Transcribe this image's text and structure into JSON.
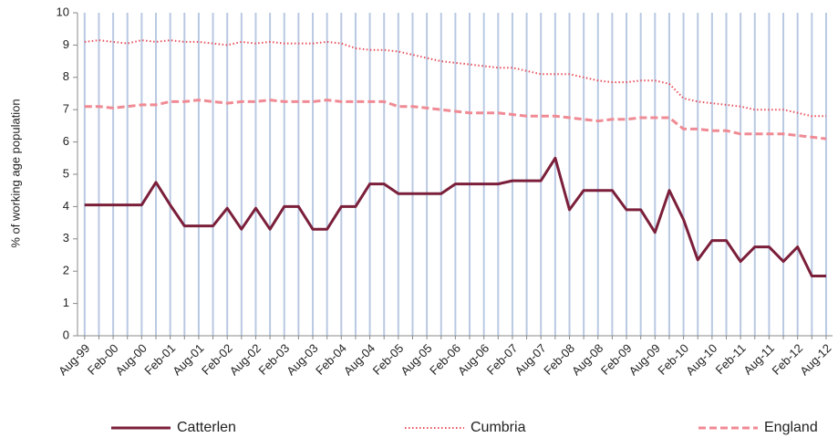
{
  "chart_data": {
    "type": "line",
    "y_label": "% of working age population",
    "categories": [
      "Aug-99",
      null,
      "Feb-00",
      null,
      "Aug-00",
      null,
      "Feb-01",
      null,
      "Aug-01",
      null,
      "Feb-02",
      null,
      "Aug-02",
      null,
      "Feb-03",
      null,
      "Aug-03",
      null,
      "Feb-04",
      null,
      "Aug-04",
      null,
      "Feb-05",
      null,
      "Aug-05",
      null,
      "Feb-06",
      null,
      "Aug-06",
      null,
      "Feb-07",
      null,
      "Aug-07",
      null,
      "Feb-08",
      null,
      "Aug-08",
      null,
      "Feb-09",
      null,
      "Aug-09",
      null,
      "Feb-10",
      null,
      "Aug-10",
      null,
      "Feb-11",
      null,
      "Aug-11",
      null,
      "Feb-12",
      null,
      "Aug-12"
    ],
    "series": [
      {
        "name": "Catterlen",
        "color": "#7b1f3a",
        "style": "solid",
        "values": [
          4.05,
          4.05,
          4.05,
          4.05,
          4.05,
          4.75,
          4.05,
          3.4,
          3.4,
          3.4,
          3.95,
          3.3,
          3.95,
          3.3,
          4.0,
          4.0,
          3.3,
          3.3,
          4.0,
          4.0,
          4.7,
          4.7,
          4.4,
          4.4,
          4.4,
          4.4,
          4.7,
          4.7,
          4.7,
          4.7,
          4.8,
          4.8,
          4.8,
          5.5,
          3.9,
          4.5,
          4.5,
          4.5,
          3.9,
          3.9,
          3.2,
          4.5,
          3.6,
          2.35,
          2.95,
          2.95,
          2.3,
          2.75,
          2.75,
          2.3,
          2.75,
          1.85,
          1.85
        ]
      },
      {
        "name": "Cumbria",
        "color": "#e8505b",
        "style": "dotted",
        "values": [
          9.1,
          9.15,
          9.1,
          9.05,
          9.15,
          9.1,
          9.15,
          9.1,
          9.1,
          9.05,
          9.0,
          9.1,
          9.05,
          9.1,
          9.05,
          9.05,
          9.05,
          9.1,
          9.05,
          8.9,
          8.85,
          8.85,
          8.8,
          8.7,
          8.6,
          8.5,
          8.45,
          8.4,
          8.35,
          8.3,
          8.3,
          8.2,
          8.1,
          8.1,
          8.1,
          8.0,
          7.9,
          7.85,
          7.85,
          7.9,
          7.9,
          7.8,
          7.35,
          7.25,
          7.2,
          7.15,
          7.1,
          7.0,
          7.0,
          7.0,
          6.9,
          6.8,
          6.8
        ]
      },
      {
        "name": "England",
        "color": "#f08a94",
        "style": "dashed",
        "values": [
          7.1,
          7.1,
          7.05,
          7.1,
          7.15,
          7.15,
          7.25,
          7.25,
          7.3,
          7.25,
          7.2,
          7.25,
          7.25,
          7.3,
          7.25,
          7.25,
          7.25,
          7.3,
          7.25,
          7.25,
          7.25,
          7.25,
          7.1,
          7.1,
          7.05,
          7.0,
          6.95,
          6.9,
          6.9,
          6.9,
          6.85,
          6.8,
          6.8,
          6.8,
          6.75,
          6.7,
          6.65,
          6.7,
          6.7,
          6.75,
          6.75,
          6.75,
          6.4,
          6.4,
          6.35,
          6.35,
          6.25,
          6.25,
          6.25,
          6.25,
          6.2,
          6.15,
          6.1
        ]
      }
    ],
    "ylim": [
      0,
      10
    ],
    "yticks": [
      0,
      1,
      2,
      3,
      4,
      5,
      6,
      7,
      8,
      9,
      10
    ],
    "grid": "x",
    "grid_color": "#b9c9e2",
    "legend": "bottom"
  }
}
